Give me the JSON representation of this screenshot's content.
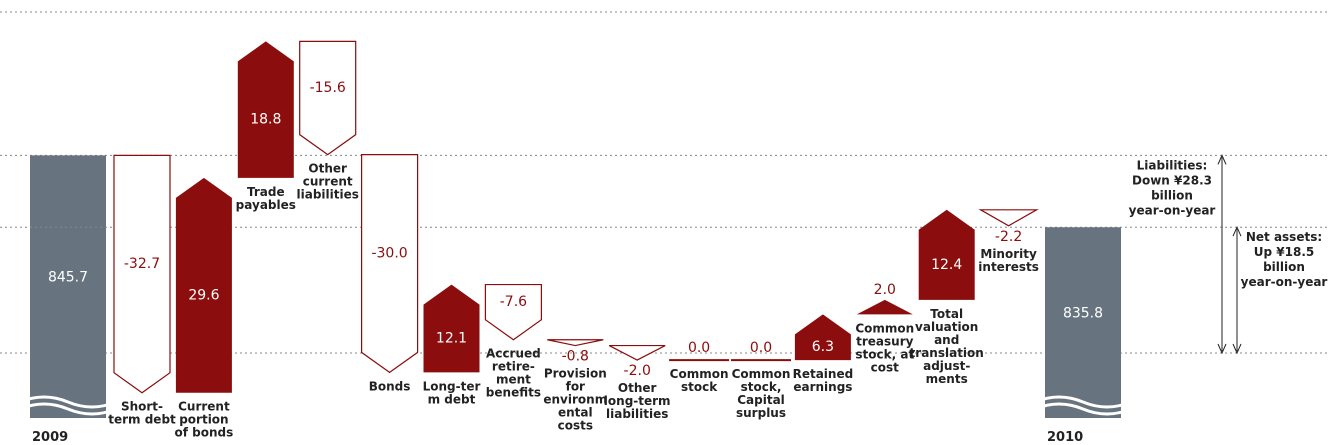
{
  "chart_data": {
    "type": "waterfall",
    "start": {
      "label": "2009",
      "value": 845.7
    },
    "end": {
      "label": "2010",
      "value": 835.8
    },
    "categories": [
      "Short-\nterm debt",
      "Current\nportion\nof bonds",
      "Trade\npayables",
      "Other\ncurrent\nliabilities",
      "Bonds",
      "Long-ter\nm debt",
      "Accrued\nretire-\nment\nbenefits",
      "Provision\nfor\nenvironm\nental\ncosts",
      "Other\nlong-term\nliabilities",
      "Common\nstock",
      "Common\nstock,\nCapital\nsurplus",
      "Retained\nearnings",
      "Common\ntreasury\nstock, at\ncost",
      "Total\nvaluation\nand\ntranslation\nadjust-\nments",
      "Minority\ninterests"
    ],
    "values": [
      -32.7,
      29.6,
      18.8,
      -15.6,
      -30.0,
      12.1,
      -7.6,
      -0.8,
      -2.0,
      0.0,
      0.0,
      6.3,
      2.0,
      12.4,
      -2.2
    ],
    "value_labels": [
      "-32.7",
      "29.6",
      "18.8",
      "-15.6",
      "-30.0",
      "12.1",
      "-7.6",
      "-0.8",
      "-2.0",
      "0.0",
      "0.0",
      "6.3",
      "2.0",
      "12.4",
      "-2.2"
    ],
    "start_label": "845.7",
    "end_label": "835.8",
    "ylim": [
      812,
      866
    ],
    "colors": {
      "total": "#67737e",
      "increase": "#8b0d0d",
      "decrease": "#ffffff"
    },
    "annotations": [
      "Liabilities:\nDown ¥28.3\nbillion\nyear-on-year",
      "Net assets:\nUp ¥18.5\nbillion\nyear-on-year"
    ]
  }
}
